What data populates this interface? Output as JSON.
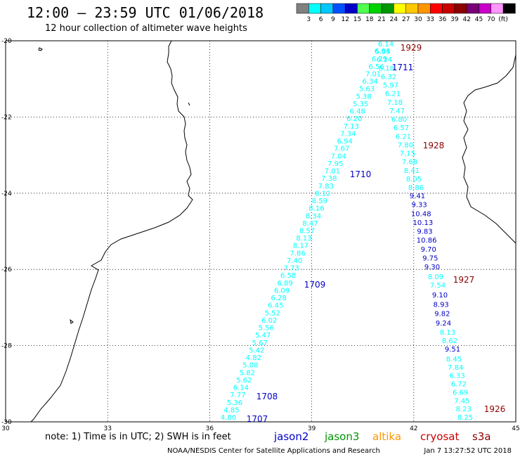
{
  "title": "12:00 – 23:59 UTC 01/06/2018",
  "subtitle": "12 hour collection of altimeter wave heights",
  "legend": {
    "colors": [
      "#808080",
      "#00ffff",
      "#00c8ff",
      "#0050ff",
      "#0000c8",
      "#50ff50",
      "#00d200",
      "#009600",
      "#ffff00",
      "#ffc800",
      "#ff9600",
      "#ff0000",
      "#c80000",
      "#8c0000",
      "#780078",
      "#c800c8",
      "#ff96ff",
      "#000000"
    ],
    "labels": [
      "3",
      "6",
      "9",
      "12",
      "15",
      "18",
      "21",
      "24",
      "27",
      "30",
      "33",
      "36",
      "39",
      "42",
      "45",
      "70",
      "(ft)"
    ]
  },
  "lat_ticks": [
    "-20",
    "-22",
    "-24",
    "-26",
    "-28",
    "-30"
  ],
  "lon_ticks": [
    "30",
    "33",
    "36",
    "39",
    "42",
    "45"
  ],
  "tracks": [
    {
      "color": "#00ffff",
      "values": [
        "4.80",
        "4.85",
        "5.36",
        "7.77",
        "6.14",
        "5.62",
        "5.82",
        "5.08",
        "4.82",
        "5.42",
        "5.67",
        "5.47",
        "5.56",
        "6.02",
        "5.52",
        "6.45",
        "6.28",
        "6.09",
        "6.89",
        "6.58",
        "7.73",
        "7.40",
        "7.86",
        "8.17",
        "8.13",
        "8.57",
        "8.47",
        "8.34",
        "8.16",
        "8.59",
        "8.12",
        "7.83",
        "7.38",
        "7.01",
        "7.95",
        "7.04",
        "7.67",
        "6.94",
        "7.34",
        "7.13",
        "6.20",
        "6.48",
        "5.35",
        "5.38",
        "5.63",
        "6.34",
        "7.01",
        "6.56",
        "6.29",
        "6.55",
        "6.14"
      ]
    },
    {
      "color": "#00ffff",
      "values": [
        "6.04",
        "6.14",
        "6.18",
        "6.32",
        "5.97",
        "6.21",
        "7.18",
        "7.47",
        "6.80",
        "6.57",
        "6.21",
        "7.80",
        "7.15",
        "7.68",
        "8.41",
        "8.05",
        "8.86"
      ]
    },
    {
      "color": "#0000c8",
      "values": [
        "9.41",
        "9.33",
        "10.48",
        "10.13",
        "9.83",
        "10.86",
        "9.70",
        "9.75",
        "9.30"
      ]
    },
    {
      "color": "#00ffff",
      "values": [
        "8.09",
        "7.54"
      ]
    },
    {
      "color": "#0000c8",
      "values": [
        "9.10",
        "8.93",
        "9.82",
        "9.24"
      ]
    },
    {
      "color": "#00ffff",
      "values": [
        "8.13",
        "8.62"
      ]
    },
    {
      "color": "#0000c8",
      "values": [
        "9.51"
      ]
    },
    {
      "color": "#00ffff",
      "values": [
        "8.45",
        "7.84",
        "6.33",
        "6.72",
        "6.69",
        "7.45",
        "8.23",
        "8.25"
      ]
    }
  ],
  "pass_labels": [
    {
      "text": "1707",
      "color": "#0000c8"
    },
    {
      "text": "1708",
      "color": "#0000c8"
    },
    {
      "text": "1709",
      "color": "#0000c8"
    },
    {
      "text": "1710",
      "color": "#0000c8"
    },
    {
      "text": "1711",
      "color": "#0000c8"
    },
    {
      "text": "1926",
      "color": "#8c0000"
    },
    {
      "text": "1927",
      "color": "#8c0000"
    },
    {
      "text": "1928",
      "color": "#8c0000"
    },
    {
      "text": "1929",
      "color": "#8c0000"
    }
  ],
  "note": "note:  1) Time is in UTC;  2) SWH is in feet",
  "satellites": [
    {
      "name": "jason2",
      "color": "#0000c8"
    },
    {
      "name": "jason3",
      "color": "#009600"
    },
    {
      "name": "altika",
      "color": "#ff9600"
    },
    {
      "name": "cryosat",
      "color": "#c80000"
    },
    {
      "name": "s3a",
      "color": "#8c0000"
    }
  ],
  "credit": "NOAA/NESDIS Center for Satellite Applications and Research",
  "timestamp": "Jan  7 13:27:52 UTC 2018"
}
